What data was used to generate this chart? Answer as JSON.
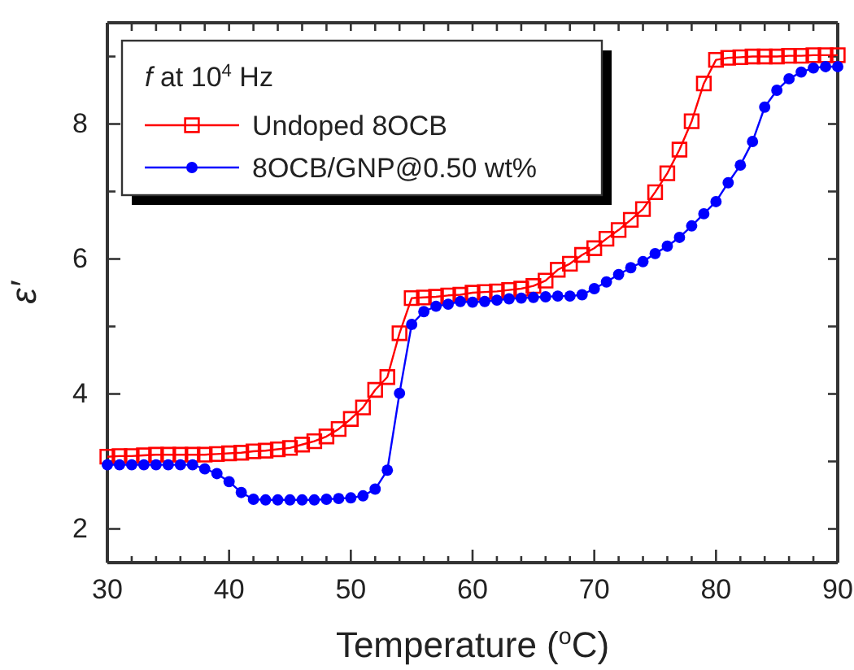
{
  "chart_data": {
    "type": "line",
    "xlabel": "Temperature ($^{o}$C)",
    "ylabel": "ε′",
    "legend_title": "f at 10$^{4}$ Hz",
    "legend": "top left",
    "xlim": [
      30,
      90
    ],
    "ylim": [
      1.5,
      9.5
    ],
    "xticks": [
      30,
      {
        "value": 32,
        "label": null
      },
      {
        "value": 34,
        "label": null
      },
      {
        "value": 36,
        "label": null
      },
      {
        "value": 38,
        "label": null
      },
      40,
      {
        "value": 42,
        "label": null
      },
      {
        "value": 44,
        "label": null
      },
      {
        "value": 46,
        "label": null
      },
      {
        "value": 48,
        "label": null
      },
      50,
      {
        "value": 52,
        "label": null
      },
      {
        "value": 54,
        "label": null
      },
      {
        "value": 56,
        "label": null
      },
      {
        "value": 58,
        "label": null
      },
      60,
      {
        "value": 62,
        "label": null
      },
      {
        "value": 64,
        "label": null
      },
      {
        "value": 66,
        "label": null
      },
      {
        "value": 68,
        "label": null
      },
      70,
      {
        "value": 72,
        "label": null
      },
      {
        "value": 74,
        "label": null
      },
      {
        "value": 76,
        "label": null
      },
      {
        "value": 78,
        "label": null
      },
      80,
      {
        "value": 82,
        "label": null
      },
      {
        "value": 84,
        "label": null
      },
      {
        "value": 86,
        "label": null
      },
      {
        "value": 88,
        "label": null
      },
      90
    ],
    "yticks": [
      2,
      {
        "value": 3,
        "label": null
      },
      4,
      {
        "value": 5,
        "label": null
      },
      6,
      {
        "value": 7,
        "label": null
      },
      8,
      {
        "value": 9,
        "label": null
      }
    ],
    "x": [
      30,
      31,
      32,
      33,
      34,
      35,
      36,
      37,
      38,
      39,
      40,
      41,
      42,
      43,
      44,
      45,
      46,
      47,
      48,
      49,
      50,
      51,
      52,
      53,
      54,
      55,
      56,
      57,
      58,
      59,
      60,
      61,
      62,
      63,
      64,
      65,
      66,
      67,
      68,
      69,
      70,
      71,
      72,
      73,
      74,
      75,
      76,
      77,
      78,
      79,
      80,
      81,
      82,
      83,
      84,
      85,
      86,
      87,
      88,
      89,
      90
    ],
    "series": [
      {
        "name": "Undoped 8OCB",
        "color": "#ff0000",
        "marker": "square",
        "values": [
          3.07,
          3.08,
          3.08,
          3.09,
          3.1,
          3.1,
          3.1,
          3.1,
          3.1,
          3.11,
          3.12,
          3.13,
          3.15,
          3.16,
          3.18,
          3.2,
          3.25,
          3.3,
          3.37,
          3.48,
          3.63,
          3.8,
          4.06,
          4.25,
          4.9,
          5.42,
          5.43,
          5.44,
          5.46,
          5.47,
          5.5,
          5.51,
          5.52,
          5.54,
          5.56,
          5.6,
          5.68,
          5.84,
          5.93,
          6.06,
          6.16,
          6.3,
          6.43,
          6.58,
          6.74,
          6.99,
          7.27,
          7.62,
          8.04,
          8.6,
          8.95,
          8.98,
          8.99,
          9.0,
          9.0,
          9.0,
          9.01,
          9.01,
          9.02,
          9.02,
          9.02
        ]
      },
      {
        "name": "8OCB/GNP@0.50 wt%",
        "color": "#0000ff",
        "marker": "circle",
        "values": [
          2.95,
          2.95,
          2.95,
          2.95,
          2.95,
          2.95,
          2.95,
          2.95,
          2.89,
          2.82,
          2.7,
          2.54,
          2.44,
          2.43,
          2.43,
          2.43,
          2.43,
          2.43,
          2.44,
          2.45,
          2.46,
          2.49,
          2.59,
          2.87,
          4.01,
          5.03,
          5.22,
          5.3,
          5.33,
          5.37,
          5.36,
          5.37,
          5.39,
          5.41,
          5.42,
          5.43,
          5.44,
          5.45,
          5.45,
          5.47,
          5.56,
          5.66,
          5.77,
          5.87,
          5.96,
          6.08,
          6.19,
          6.32,
          6.49,
          6.67,
          6.85,
          7.13,
          7.39,
          7.74,
          8.25,
          8.5,
          8.67,
          8.77,
          8.83,
          8.85,
          8.85
        ]
      }
    ]
  }
}
